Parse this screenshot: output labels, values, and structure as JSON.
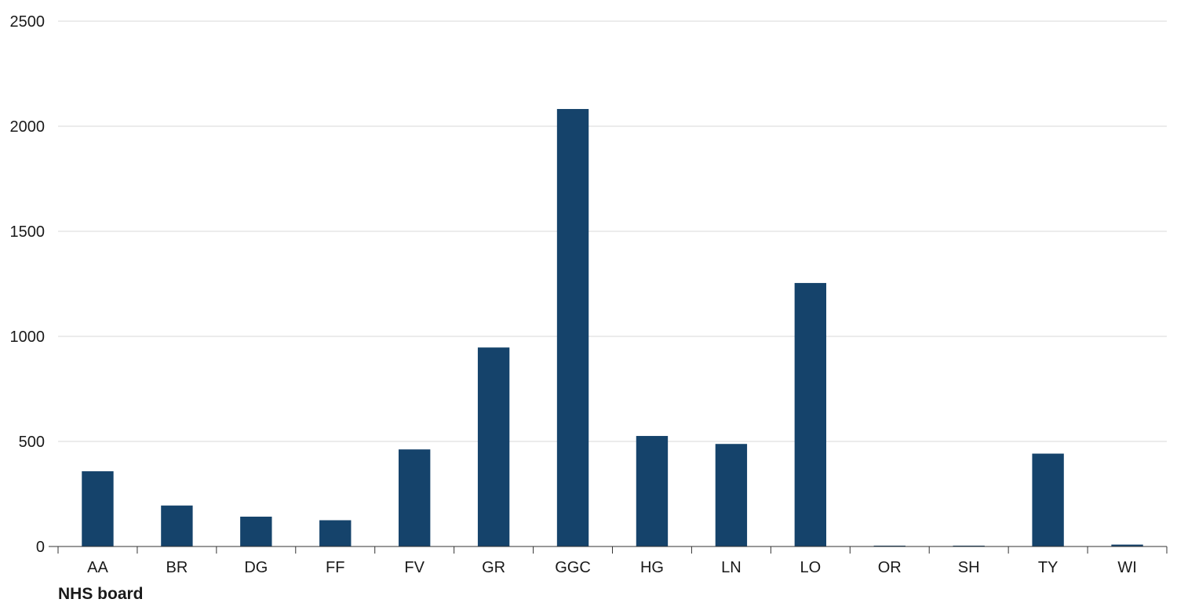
{
  "chart_data": {
    "type": "bar",
    "title": "",
    "xlabel": "NHS board",
    "ylabel": "",
    "categories": [
      "AA",
      "BR",
      "DG",
      "FF",
      "FV",
      "GR",
      "GGC",
      "HG",
      "LN",
      "LO",
      "OR",
      "SH",
      "TY",
      "WI"
    ],
    "values": [
      358,
      195,
      142,
      125,
      462,
      947,
      2082,
      526,
      488,
      1254,
      4,
      4,
      442,
      9
    ],
    "ylim": [
      0,
      2500
    ],
    "yticks": [
      0,
      500,
      1000,
      1500,
      2000,
      2500
    ],
    "grid": true,
    "legend": "none",
    "colors": {
      "bar": "#15436b"
    }
  }
}
